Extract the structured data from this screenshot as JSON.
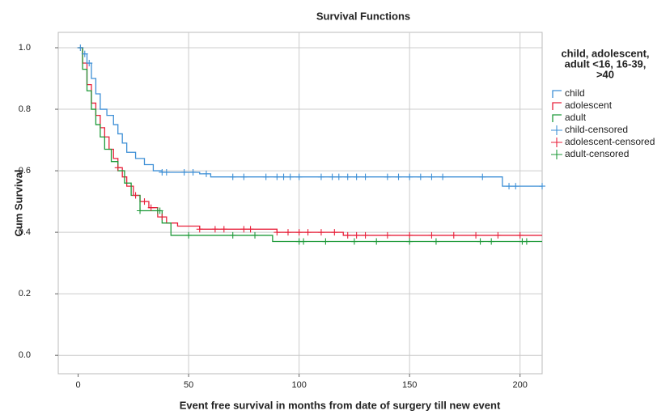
{
  "chart_data": {
    "type": "step",
    "title": "Survival Functions",
    "x_label": "Event free survival in months from date of surgery till new event",
    "y_label": "Cum Survival",
    "legend_title": [
      "child, adolescent,",
      "adult <16, 16-39,",
      ">40"
    ],
    "xlim": [
      -9,
      210
    ],
    "ylim": [
      -0.06,
      1.05
    ],
    "xticks": [
      0,
      50,
      100,
      150,
      200
    ],
    "yticks": [
      {
        "value": 0,
        "label": "0.0"
      },
      0.2,
      0.4,
      0.6,
      0.8,
      {
        "value": 1,
        "label": "1.0"
      }
    ],
    "grid": true,
    "series": [
      {
        "name": "child",
        "color": "#3d8fd6",
        "x": [
          0,
          2,
          4,
          6,
          8,
          10,
          13,
          16,
          18,
          20,
          22,
          26,
          30,
          34,
          38,
          55,
          60,
          192,
          210
        ],
        "values": [
          1.0,
          0.98,
          0.95,
          0.9,
          0.85,
          0.8,
          0.78,
          0.75,
          0.72,
          0.69,
          0.66,
          0.64,
          0.62,
          0.6,
          0.595,
          0.59,
          0.58,
          0.55,
          0.55
        ]
      },
      {
        "name": "adolescent",
        "color": "#e8213b",
        "x": [
          0,
          2,
          4,
          6,
          8,
          10,
          12,
          14,
          16,
          18,
          20,
          22,
          25,
          28,
          32,
          36,
          40,
          45,
          55,
          90,
          120,
          210
        ],
        "values": [
          1.0,
          0.95,
          0.88,
          0.82,
          0.78,
          0.74,
          0.71,
          0.67,
          0.64,
          0.61,
          0.58,
          0.55,
          0.52,
          0.5,
          0.48,
          0.45,
          0.43,
          0.42,
          0.41,
          0.4,
          0.39,
          0.39
        ]
      },
      {
        "name": "adult",
        "color": "#1f9a3a",
        "x": [
          0,
          2,
          4,
          6,
          8,
          10,
          12,
          15,
          18,
          21,
          24,
          28,
          38,
          42,
          88,
          210
        ],
        "values": [
          1.0,
          0.93,
          0.86,
          0.8,
          0.75,
          0.71,
          0.67,
          0.63,
          0.6,
          0.56,
          0.52,
          0.47,
          0.43,
          0.39,
          0.37,
          0.37
        ]
      }
    ],
    "censored": [
      {
        "name": "child-censored",
        "color": "#3d8fd6",
        "x": [
          1,
          3,
          5,
          38,
          40,
          48,
          52,
          58,
          70,
          75,
          85,
          90,
          93,
          96,
          100,
          110,
          115,
          118,
          122,
          126,
          130,
          140,
          145,
          150,
          155,
          160,
          165,
          183,
          195,
          198,
          210
        ],
        "values": [
          1.0,
          0.98,
          0.95,
          0.595,
          0.595,
          0.595,
          0.595,
          0.59,
          0.58,
          0.58,
          0.58,
          0.58,
          0.58,
          0.58,
          0.58,
          0.58,
          0.58,
          0.58,
          0.58,
          0.58,
          0.58,
          0.58,
          0.58,
          0.58,
          0.58,
          0.58,
          0.58,
          0.58,
          0.55,
          0.55,
          0.55
        ]
      },
      {
        "name": "adolescent-censored",
        "color": "#e8213b",
        "x": [
          18,
          26,
          30,
          33,
          38,
          55,
          62,
          66,
          75,
          78,
          90,
          95,
          100,
          104,
          110,
          116,
          122,
          126,
          130,
          140,
          150,
          160,
          170,
          180,
          190,
          200
        ],
        "values": [
          0.61,
          0.52,
          0.5,
          0.48,
          0.45,
          0.41,
          0.41,
          0.41,
          0.41,
          0.41,
          0.4,
          0.4,
          0.4,
          0.4,
          0.4,
          0.4,
          0.39,
          0.39,
          0.39,
          0.39,
          0.39,
          0.39,
          0.39,
          0.39,
          0.39,
          0.39
        ]
      },
      {
        "name": "adult-censored",
        "color": "#1f9a3a",
        "x": [
          28,
          36,
          37,
          50,
          70,
          80,
          100,
          102,
          112,
          125,
          135,
          150,
          162,
          182,
          187,
          201,
          203
        ],
        "values": [
          0.47,
          0.47,
          0.47,
          0.39,
          0.39,
          0.39,
          0.37,
          0.37,
          0.37,
          0.37,
          0.37,
          0.37,
          0.37,
          0.37,
          0.37,
          0.37,
          0.37
        ]
      }
    ]
  }
}
